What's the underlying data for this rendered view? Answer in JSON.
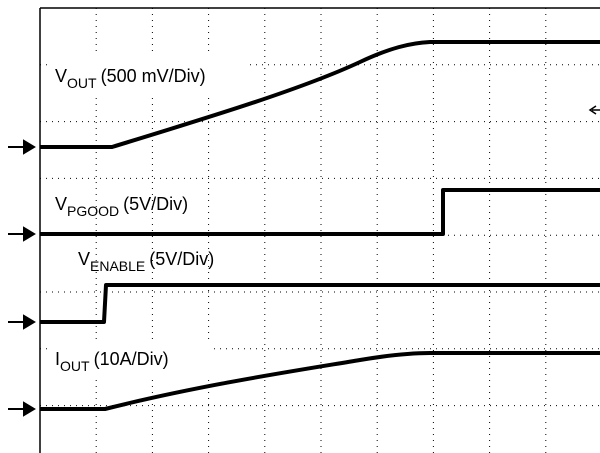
{
  "channels": [
    {
      "main": "V",
      "sub": "OUT",
      "scale": "(500 mV/Div)"
    },
    {
      "main": "V",
      "sub": "PGOOD",
      "scale": "(5V/Div)"
    },
    {
      "main": "V",
      "sub": "ENABLE",
      "scale": "(5V/Div)"
    },
    {
      "main": "I",
      "sub": "OUT",
      "scale": "(10A/Div)"
    }
  ]
}
